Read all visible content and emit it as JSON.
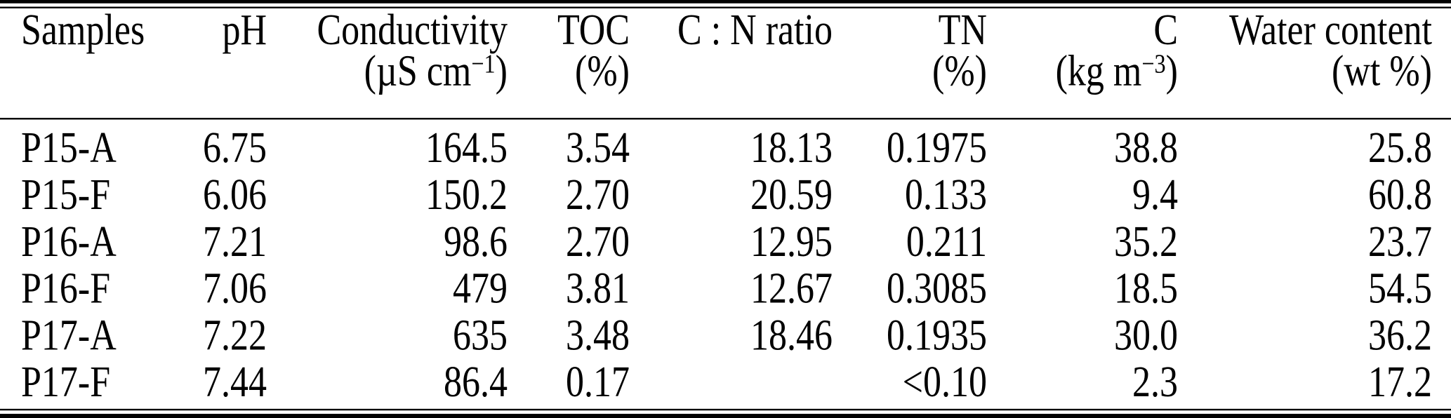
{
  "table": {
    "header": {
      "samples": {
        "label": "Samples",
        "unit_pre": "",
        "unit_sup": "",
        "unit_post": ""
      },
      "ph": {
        "label": "pH",
        "unit_pre": "",
        "unit_sup": "",
        "unit_post": ""
      },
      "conductivity": {
        "label": "Conductivity",
        "unit_pre": "(µS cm",
        "unit_sup": "−1",
        "unit_post": ")"
      },
      "toc": {
        "label": "TOC",
        "unit_pre": "(%)",
        "unit_sup": "",
        "unit_post": ""
      },
      "cn": {
        "label": "C : N ratio",
        "unit_pre": "",
        "unit_sup": "",
        "unit_post": ""
      },
      "tn": {
        "label": "TN",
        "unit_pre": "(%)",
        "unit_sup": "",
        "unit_post": ""
      },
      "c": {
        "label": "C",
        "unit_pre": "(kg m",
        "unit_sup": "−3",
        "unit_post": ")"
      },
      "water": {
        "label": "Water content",
        "unit_pre": "(wt %)",
        "unit_sup": "",
        "unit_post": ""
      }
    },
    "rows": [
      {
        "sample": "P15-A",
        "ph": "6.75",
        "conductivity": "164.5",
        "toc": "3.54",
        "cn": "18.13",
        "tn": "0.1975",
        "c": "38.8",
        "water": "25.8"
      },
      {
        "sample": "P15-F",
        "ph": "6.06",
        "conductivity": "150.2",
        "toc": "2.70",
        "cn": "20.59",
        "tn": "0.133",
        "c": "9.4",
        "water": "60.8"
      },
      {
        "sample": "P16-A",
        "ph": "7.21",
        "conductivity": "98.6",
        "toc": "2.70",
        "cn": "12.95",
        "tn": "0.211",
        "c": "35.2",
        "water": "23.7"
      },
      {
        "sample": "P16-F",
        "ph": "7.06",
        "conductivity": "479",
        "toc": "3.81",
        "cn": "12.67",
        "tn": "0.3085",
        "c": "18.5",
        "water": "54.5"
      },
      {
        "sample": "P17-A",
        "ph": "7.22",
        "conductivity": "635",
        "toc": "3.48",
        "cn": "18.46",
        "tn": "0.1935",
        "c": "30.0",
        "water": "36.2"
      },
      {
        "sample": "P17-F",
        "ph": "7.44",
        "conductivity": "86.4",
        "toc": "0.17",
        "cn": "",
        "tn": "<0.10",
        "c": "2.3",
        "water": "17.2"
      }
    ]
  },
  "colors": {
    "text": "#000000",
    "background": "#ffffff",
    "rule": "#000000"
  }
}
